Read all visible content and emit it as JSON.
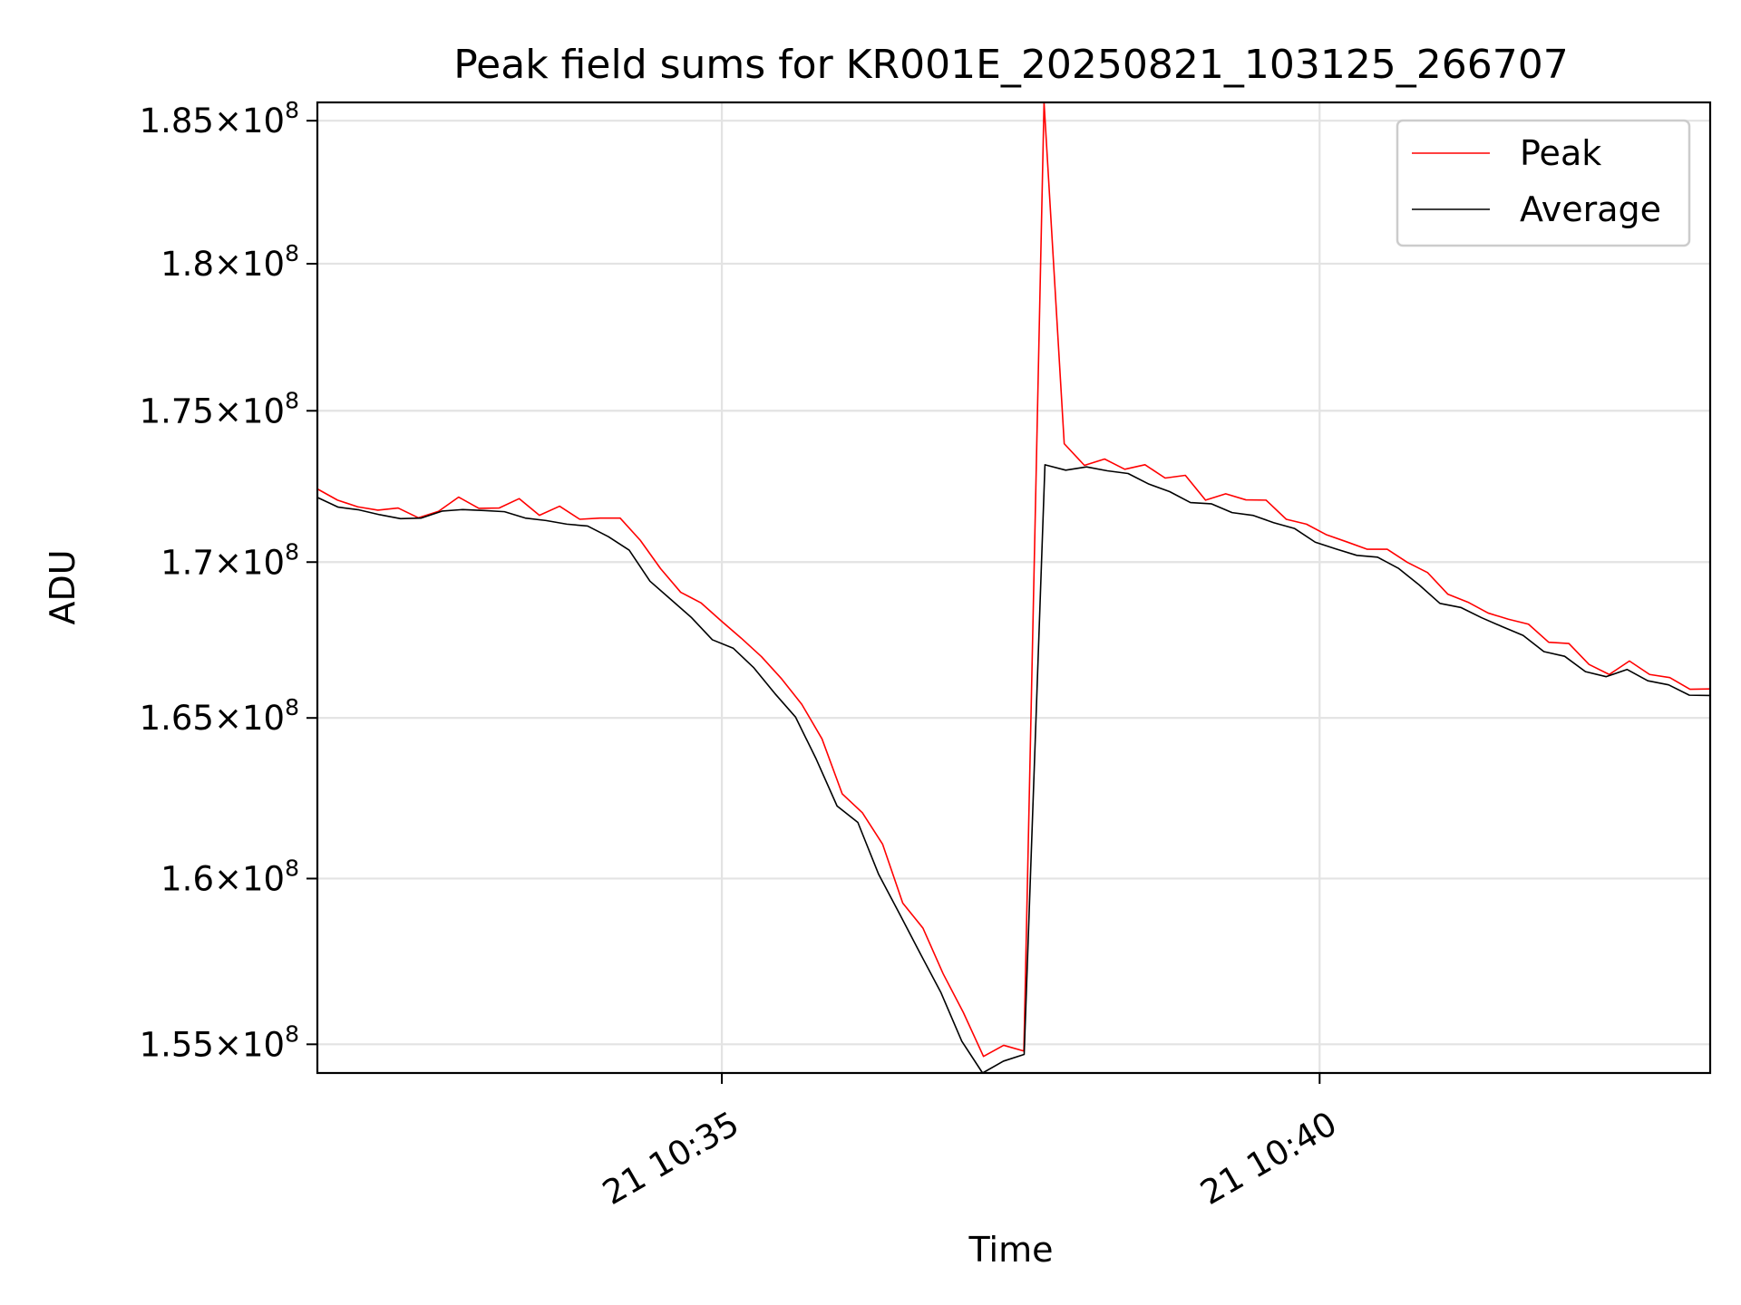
{
  "chart_data": {
    "type": "line",
    "title": "Peak field sums for KR001E_20250821_103125_266707",
    "xlabel": "Time",
    "ylabel": "ADU",
    "x_start": "2025-08-21T10:31:37",
    "x_end": "2025-08-21T10:43:16",
    "xlim": [
      "2025-08-21T10:31:37",
      "2025-08-21T10:43:16"
    ],
    "ylim": [
      154150000.0,
      185650000.0
    ],
    "x_ticks": [
      {
        "value": "2025-08-21T10:35:00",
        "label": "21 10:35"
      },
      {
        "value": "2025-08-21T10:40:00",
        "label": "21 10:40"
      }
    ],
    "y_ticks": [
      {
        "value": 155000000.0,
        "mantissa": "1.55",
        "base": "10",
        "exponent": "8"
      },
      {
        "value": 160000000.0,
        "mantissa": "1.6",
        "base": "10",
        "exponent": "8"
      },
      {
        "value": 165000000.0,
        "mantissa": "1.65",
        "base": "10",
        "exponent": "8"
      },
      {
        "value": 170000000.0,
        "mantissa": "1.7",
        "base": "10",
        "exponent": "8"
      },
      {
        "value": 175000000.0,
        "mantissa": "1.75",
        "base": "10",
        "exponent": "8"
      },
      {
        "value": 180000000.0,
        "mantissa": "1.8",
        "base": "10",
        "exponent": "8"
      },
      {
        "value": 185000000.0,
        "mantissa": "1.85",
        "base": "10",
        "exponent": "8"
      }
    ],
    "grid": true,
    "legend_position": "top-right",
    "series": [
      {
        "name": "Peak",
        "color": "#ff0000",
        "values": [
          172400000.0,
          172030000.0,
          171810000.0,
          171700000.0,
          171770000.0,
          171450000.0,
          171660000.0,
          172130000.0,
          171760000.0,
          171770000.0,
          172080000.0,
          171530000.0,
          171830000.0,
          171400000.0,
          171440000.0,
          171440000.0,
          170710000.0,
          169790000.0,
          169020000.0,
          168680000.0,
          168100000.0,
          167540000.0,
          166950000.0,
          166240000.0,
          165430000.0,
          164340000.0,
          162620000.0,
          162030000.0,
          161060000.0,
          159250000.0,
          158490000.0,
          157110000.0,
          155950000.0,
          154640000.0,
          154970000.0,
          154800000.0,
          185650000.0,
          173900000.0,
          173180000.0,
          173390000.0,
          173050000.0,
          173200000.0,
          172760000.0,
          172850000.0,
          172030000.0,
          172240000.0,
          172040000.0,
          172030000.0,
          171400000.0,
          171240000.0,
          170890000.0,
          170660000.0,
          170420000.0,
          170420000.0,
          169990000.0,
          169660000.0,
          168960000.0,
          168700000.0,
          168350000.0,
          168150000.0,
          167990000.0,
          167410000.0,
          167370000.0,
          166700000.0,
          166380000.0,
          166810000.0,
          166380000.0,
          166280000.0,
          165910000.0,
          165920000.0
        ]
      },
      {
        "name": "Average",
        "color": "#000000",
        "values": [
          172120000.0,
          171800000.0,
          171710000.0,
          171550000.0,
          171420000.0,
          171440000.0,
          171670000.0,
          171720000.0,
          171690000.0,
          171650000.0,
          171440000.0,
          171360000.0,
          171240000.0,
          171180000.0,
          170830000.0,
          170390000.0,
          169380000.0,
          168790000.0,
          168200000.0,
          167490000.0,
          167220000.0,
          166590000.0,
          165780000.0,
          165030000.0,
          163700000.0,
          162240000.0,
          161730000.0,
          160130000.0,
          158930000.0,
          157720000.0,
          156540000.0,
          155090000.0,
          154150000.0,
          154500000.0,
          154700000.0,
          173200000.0,
          173020000.0,
          173130000.0,
          173000000.0,
          172910000.0,
          172560000.0,
          172310000.0,
          171950000.0,
          171910000.0,
          171620000.0,
          171530000.0,
          171290000.0,
          171100000.0,
          170650000.0,
          170430000.0,
          170220000.0,
          170160000.0,
          169800000.0,
          169260000.0,
          168660000.0,
          168530000.0,
          168200000.0,
          167910000.0,
          167630000.0,
          167110000.0,
          166960000.0,
          166470000.0,
          166310000.0,
          166540000.0,
          166180000.0,
          166050000.0,
          165720000.0,
          165710000.0
        ]
      }
    ]
  }
}
